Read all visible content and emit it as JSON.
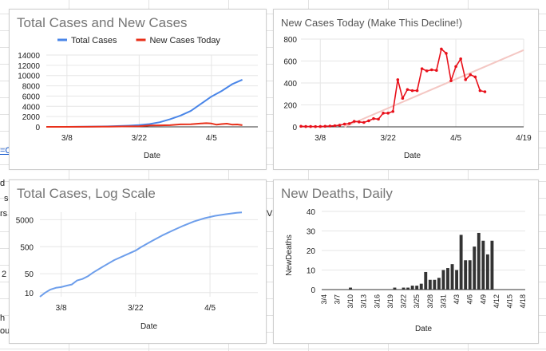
{
  "sheet_fragments": [
    "=C",
    "d",
    "s",
    "rs",
    "2",
    "h",
    "ou",
    "V"
  ],
  "chart_data": [
    {
      "type": "line",
      "title": "Total Cases and New Cases",
      "xlabel": "Date",
      "ylabel": "",
      "ylim": [
        0,
        14000
      ],
      "yticks": [
        0,
        2000,
        4000,
        6000,
        8000,
        10000,
        12000,
        14000
      ],
      "x_ticks": [
        "3/8",
        "3/22",
        "4/5"
      ],
      "x_range": [
        "3/4",
        "4/14"
      ],
      "legend_position": "top",
      "series": [
        {
          "name": "Total Cases",
          "color": "#4a86e8",
          "x": [
            "3/4",
            "3/8",
            "3/12",
            "3/16",
            "3/20",
            "3/22",
            "3/24",
            "3/26",
            "3/28",
            "3/30",
            "4/1",
            "4/3",
            "4/5",
            "4/7",
            "4/9",
            "4/11"
          ],
          "values": [
            0,
            5,
            30,
            90,
            240,
            350,
            550,
            900,
            1500,
            2200,
            3100,
            4500,
            5900,
            7000,
            8300,
            9200
          ]
        },
        {
          "name": "New Cases Today",
          "color": "#e8301a",
          "x": [
            "3/4",
            "3/8",
            "3/12",
            "3/16",
            "3/20",
            "3/22",
            "3/24",
            "3/26",
            "3/28",
            "3/30",
            "4/1",
            "4/3",
            "4/4",
            "4/5",
            "4/6",
            "4/7",
            "4/8",
            "4/9",
            "4/10",
            "4/11"
          ],
          "values": [
            0,
            3,
            15,
            40,
            100,
            130,
            280,
            300,
            330,
            480,
            520,
            650,
            710,
            660,
            420,
            550,
            620,
            430,
            470,
            330
          ]
        }
      ]
    },
    {
      "type": "line",
      "title": "New Cases Today (Make This Decline!)",
      "xlabel": "Date",
      "ylabel": "",
      "ylim": [
        0,
        800
      ],
      "yticks": [
        0,
        200,
        400,
        600,
        800
      ],
      "x_ticks": [
        "3/8",
        "3/22",
        "4/5",
        "4/19"
      ],
      "x_range": [
        "3/4",
        "4/19"
      ],
      "series": [
        {
          "name": "",
          "color": "#e8101a",
          "x": [
            "3/4",
            "3/5",
            "3/6",
            "3/7",
            "3/8",
            "3/9",
            "3/10",
            "3/11",
            "3/12",
            "3/13",
            "3/14",
            "3/15",
            "3/16",
            "3/17",
            "3/18",
            "3/19",
            "3/20",
            "3/21",
            "3/22",
            "3/23",
            "3/24",
            "3/25",
            "3/26",
            "3/27",
            "3/28",
            "3/29",
            "3/30",
            "3/31",
            "4/1",
            "4/2",
            "4/3",
            "4/4",
            "4/5",
            "4/6",
            "4/7",
            "4/8",
            "4/9",
            "4/10",
            "4/11"
          ],
          "values": [
            5,
            3,
            3,
            2,
            3,
            5,
            7,
            10,
            15,
            25,
            30,
            50,
            45,
            40,
            55,
            75,
            70,
            125,
            125,
            140,
            430,
            260,
            340,
            330,
            330,
            530,
            510,
            520,
            515,
            710,
            670,
            420,
            550,
            620,
            430,
            475,
            455,
            330,
            320
          ]
        },
        {
          "name": "",
          "color": "#f4c7c3",
          "trendline": true,
          "x": [
            "3/13",
            "4/19"
          ],
          "values": [
            0,
            700
          ]
        }
      ]
    },
    {
      "type": "line",
      "title": "Total Cases, Log Scale",
      "xlabel": "Date",
      "ylabel": "",
      "y_scale": "log",
      "yticks": [
        10,
        50,
        500,
        5000
      ],
      "x_ticks": [
        "3/8",
        "3/22",
        "4/5"
      ],
      "x_range": [
        "3/4",
        "4/14"
      ],
      "series": [
        {
          "name": "",
          "color": "#6d9eeb",
          "x": [
            "3/4",
            "3/5",
            "3/6",
            "3/7",
            "3/8",
            "3/9",
            "3/10",
            "3/11",
            "3/12",
            "3/13",
            "3/14",
            "3/16",
            "3/18",
            "3/20",
            "3/22",
            "3/23",
            "3/25",
            "3/27",
            "3/29",
            "3/31",
            "4/2",
            "4/4",
            "4/6",
            "4/8",
            "4/10",
            "4/11"
          ],
          "values": [
            7,
            10,
            13,
            15,
            16,
            18,
            20,
            28,
            32,
            40,
            55,
            95,
            160,
            240,
            360,
            480,
            800,
            1300,
            2000,
            3000,
            4300,
            5700,
            7000,
            8000,
            9000,
            9300
          ]
        }
      ]
    },
    {
      "type": "bar",
      "title": "New Deaths, Daily",
      "xlabel": "Date",
      "ylabel": "NewDeaths",
      "ylim": [
        0,
        40
      ],
      "yticks": [
        0,
        10,
        20,
        30,
        40
      ],
      "x_ticks": [
        "3/4",
        "3/7",
        "3/10",
        "3/13",
        "3/16",
        "3/19",
        "3/22",
        "3/25",
        "3/28",
        "3/31",
        "4/3",
        "4/6",
        "4/9",
        "4/12",
        "4/15",
        "4/18"
      ],
      "color": "#333333",
      "categories": [
        "3/4",
        "3/5",
        "3/6",
        "3/7",
        "3/8",
        "3/9",
        "3/10",
        "3/11",
        "3/12",
        "3/13",
        "3/14",
        "3/15",
        "3/16",
        "3/17",
        "3/18",
        "3/19",
        "3/20",
        "3/21",
        "3/22",
        "3/23",
        "3/24",
        "3/25",
        "3/26",
        "3/27",
        "3/28",
        "3/29",
        "3/30",
        "3/31",
        "4/1",
        "4/2",
        "4/3",
        "4/4",
        "4/5",
        "4/6",
        "4/7",
        "4/8",
        "4/9",
        "4/10",
        "4/11"
      ],
      "values": [
        0,
        0,
        0,
        0,
        0,
        0,
        1,
        0,
        0,
        0,
        0,
        0,
        0,
        0,
        0,
        0,
        1,
        0,
        1,
        1,
        2,
        2,
        3,
        9,
        5,
        5,
        6,
        10,
        11,
        13,
        10,
        28,
        15,
        15,
        22,
        29,
        25,
        18,
        25
      ]
    }
  ]
}
